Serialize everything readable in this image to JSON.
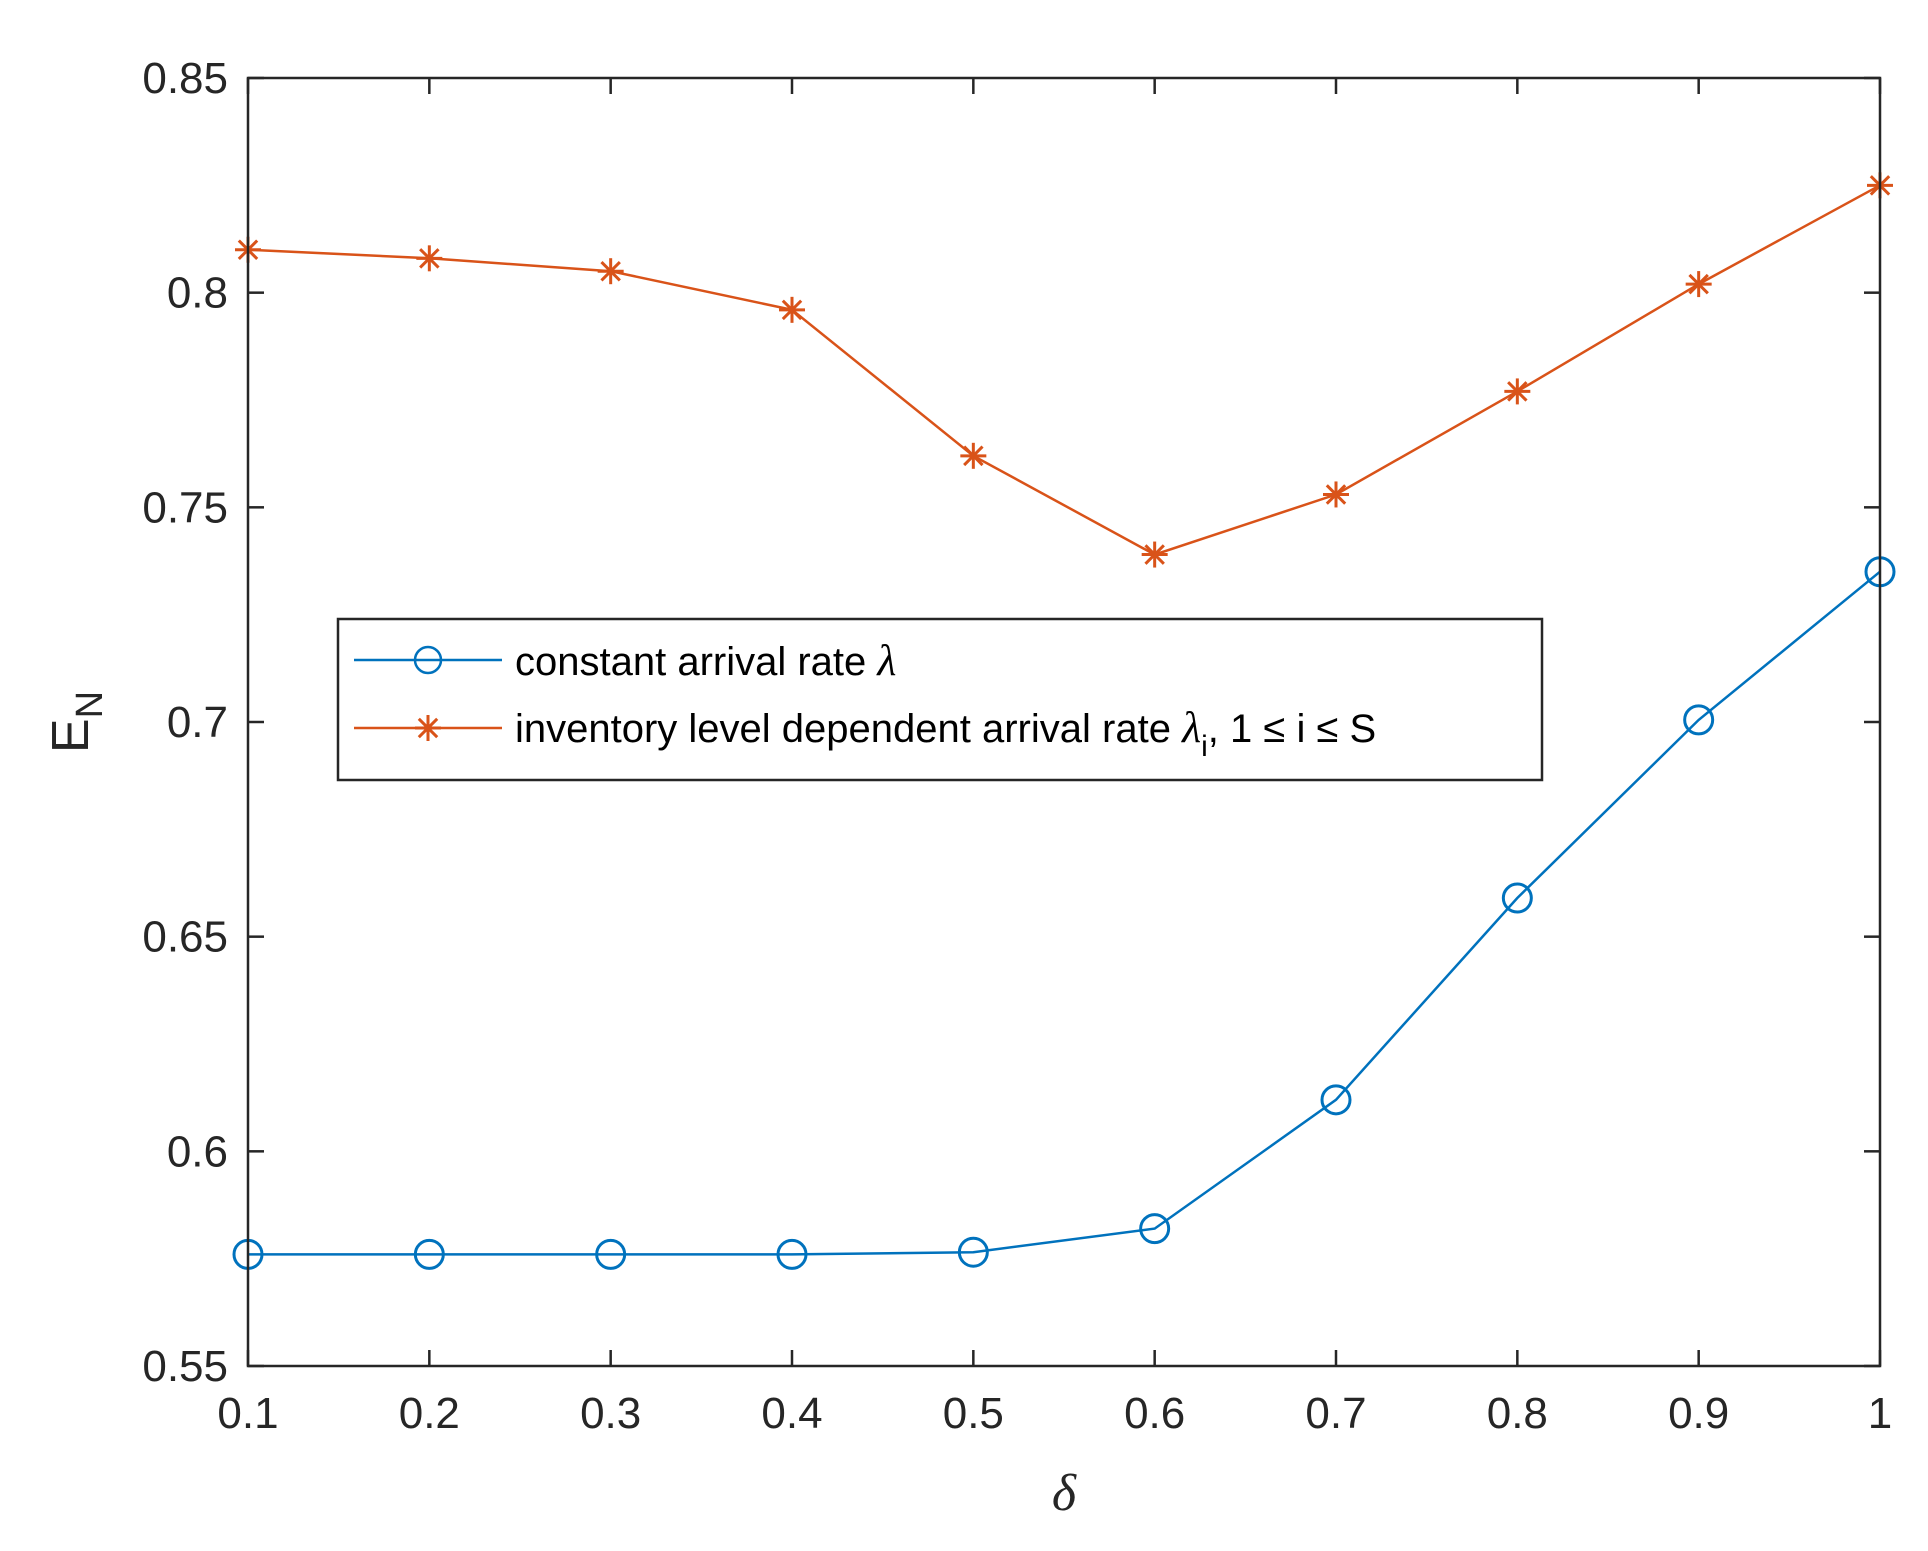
{
  "chart_data": {
    "type": "line",
    "title": "",
    "xlabel": "δ",
    "ylabel": {
      "main": "E",
      "sub": "N"
    },
    "xlim": [
      0.1,
      1
    ],
    "ylim": [
      0.55,
      0.85
    ],
    "x_ticks": [
      "0.1",
      "0.2",
      "0.3",
      "0.4",
      "0.5",
      "0.6",
      "0.7",
      "0.8",
      "0.9",
      "1"
    ],
    "y_ticks": [
      "0.55",
      "0.6",
      "0.65",
      "0.7",
      "0.75",
      "0.8",
      "0.85"
    ],
    "x": [
      0.1,
      0.2,
      0.3,
      0.4,
      0.5,
      0.6,
      0.7,
      0.8,
      0.9,
      1.0
    ],
    "grid": false,
    "legend_position": "center-left",
    "series": [
      {
        "name": "constant arrival rate λ",
        "legend": {
          "text": "constant arrival rate ",
          "greek": "λ"
        },
        "color": "#0072BD",
        "marker": "circle",
        "values": [
          0.576,
          0.576,
          0.576,
          0.576,
          0.5765,
          0.582,
          0.612,
          0.659,
          0.7005,
          0.735
        ]
      },
      {
        "name": "inventory level dependent arrival rate λi, 1 ≤ i ≤ S",
        "legend": {
          "text": "inventory level dependent arrival rate ",
          "greek": "λ",
          "sub": "i",
          "tail": ", 1 ≤ i ≤ S"
        },
        "color": "#D95319",
        "marker": "asterisk",
        "values": [
          0.81,
          0.808,
          0.805,
          0.796,
          0.762,
          0.739,
          0.753,
          0.777,
          0.802,
          0.825
        ]
      }
    ]
  }
}
